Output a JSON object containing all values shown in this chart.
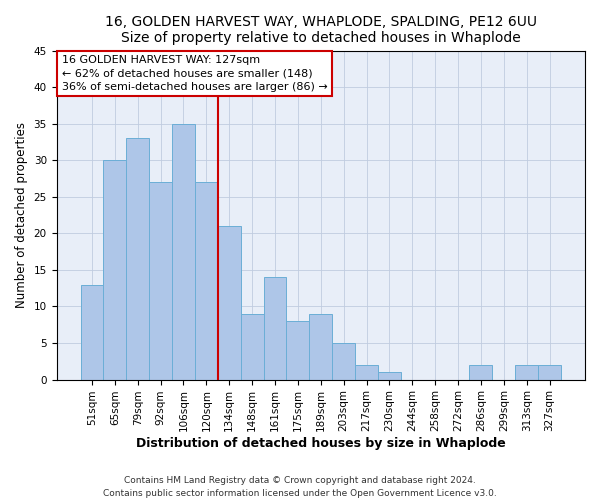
{
  "title": "16, GOLDEN HARVEST WAY, WHAPLODE, SPALDING, PE12 6UU",
  "subtitle": "Size of property relative to detached houses in Whaplode",
  "xlabel": "Distribution of detached houses by size in Whaplode",
  "ylabel": "Number of detached properties",
  "categories": [
    "51sqm",
    "65sqm",
    "79sqm",
    "92sqm",
    "106sqm",
    "120sqm",
    "134sqm",
    "148sqm",
    "161sqm",
    "175sqm",
    "189sqm",
    "203sqm",
    "217sqm",
    "230sqm",
    "244sqm",
    "258sqm",
    "272sqm",
    "286sqm",
    "299sqm",
    "313sqm",
    "327sqm"
  ],
  "values": [
    13,
    30,
    33,
    27,
    35,
    27,
    21,
    9,
    14,
    8,
    9,
    5,
    2,
    1,
    0,
    0,
    0,
    2,
    0,
    2,
    2
  ],
  "bar_color": "#aec6e8",
  "bar_edge_color": "#6baed6",
  "vline_color": "#cc0000",
  "vline_index": 5.5,
  "ylim": [
    0,
    45
  ],
  "yticks": [
    0,
    5,
    10,
    15,
    20,
    25,
    30,
    35,
    40,
    45
  ],
  "annotation_title": "16 GOLDEN HARVEST WAY: 127sqm",
  "annotation_line1": "← 62% of detached houses are smaller (148)",
  "annotation_line2": "36% of semi-detached houses are larger (86) →",
  "annotation_box_color": "#ffffff",
  "annotation_box_edgecolor": "#cc0000",
  "footer_line1": "Contains HM Land Registry data © Crown copyright and database right 2024.",
  "footer_line2": "Contains public sector information licensed under the Open Government Licence v3.0.",
  "title_fontsize": 10,
  "subtitle_fontsize": 9.5,
  "xlabel_fontsize": 9,
  "ylabel_fontsize": 8.5,
  "tick_fontsize": 7.5,
  "annotation_fontsize": 8,
  "footer_fontsize": 6.5,
  "bg_color": "#e8eef8"
}
